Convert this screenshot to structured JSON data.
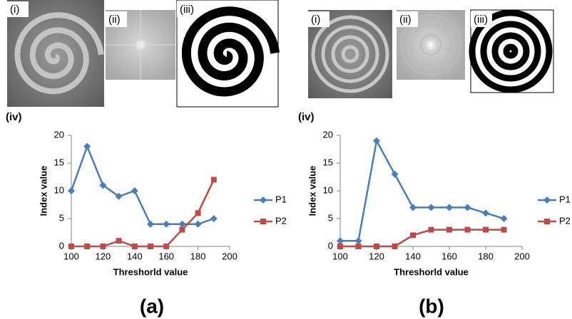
{
  "chart_data": [
    {
      "type": "line",
      "panel_label": "(a)",
      "image_labels": [
        "(i)",
        "(ii)",
        "(iii)"
      ],
      "subplot_label": "(iv)",
      "x_label": "Threshorld value",
      "y_label": "Index value",
      "x": [
        100,
        110,
        120,
        130,
        140,
        150,
        160,
        170,
        180,
        190
      ],
      "series": [
        {
          "name": "P1",
          "color": "#4a7ebb",
          "marker": "diamond",
          "values": [
            10,
            18,
            11,
            9,
            10,
            4,
            4,
            4,
            4,
            5
          ]
        },
        {
          "name": "P2",
          "color": "#be4b48",
          "marker": "square",
          "values": [
            0,
            0,
            0,
            1,
            0,
            0,
            0,
            3,
            6,
            12
          ]
        }
      ],
      "xlim": [
        100,
        200
      ],
      "xticks": [
        100,
        120,
        140,
        160,
        180,
        200
      ],
      "ylim": [
        0,
        20
      ],
      "yticks": [
        0,
        5,
        10,
        15,
        20
      ],
      "legend": "right"
    },
    {
      "type": "line",
      "panel_label": "(b)",
      "image_labels": [
        "(i)",
        "(ii)",
        "(iii)"
      ],
      "subplot_label": "(iv)",
      "x_label": "Threshorld value",
      "y_label": "Index value",
      "x": [
        100,
        110,
        120,
        130,
        140,
        150,
        160,
        170,
        180,
        190
      ],
      "series": [
        {
          "name": "P1",
          "color": "#4a7ebb",
          "marker": "diamond",
          "values": [
            1,
            1,
            19,
            13,
            7,
            7,
            7,
            7,
            6,
            5
          ]
        },
        {
          "name": "P2",
          "color": "#be4b48",
          "marker": "square",
          "values": [
            0,
            0,
            0,
            0,
            2,
            3,
            3,
            3,
            3,
            3
          ]
        }
      ],
      "xlim": [
        100,
        200
      ],
      "xticks": [
        100,
        120,
        140,
        160,
        180,
        200
      ],
      "ylim": [
        0,
        20
      ],
      "yticks": [
        0,
        5,
        10,
        15,
        20
      ],
      "legend": "right"
    }
  ]
}
